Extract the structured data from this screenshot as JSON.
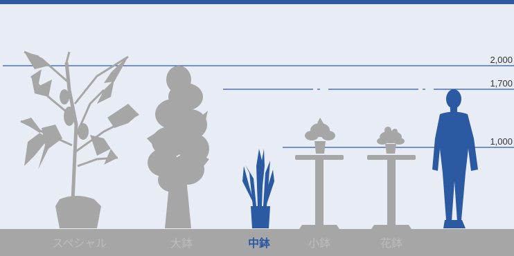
{
  "colors": {
    "background": "#e8edf5",
    "header": "#2b5aa3",
    "silhouette": "#a6a6a6",
    "highlight": "#2b5aa3",
    "ground": "#a6a6a6",
    "line": "#2b5aa3"
  },
  "height_markers": [
    {
      "label": "2,000",
      "value": 2000
    },
    {
      "label": "1,700",
      "value": 1700
    },
    {
      "label": "1,000",
      "value": 1000
    }
  ],
  "categories": [
    {
      "label": "スペシャル",
      "active": false
    },
    {
      "label": "大鉢",
      "active": false
    },
    {
      "label": "中鉢",
      "active": true
    },
    {
      "label": "小鉢",
      "active": false
    },
    {
      "label": "花鉢",
      "active": false
    }
  ],
  "icons": [
    "palm-plant-icon",
    "tall-bush-plant-icon",
    "snake-plant-icon",
    "small-plant-on-table-icon",
    "flower-pot-on-table-icon",
    "person-silhouette-icon"
  ]
}
